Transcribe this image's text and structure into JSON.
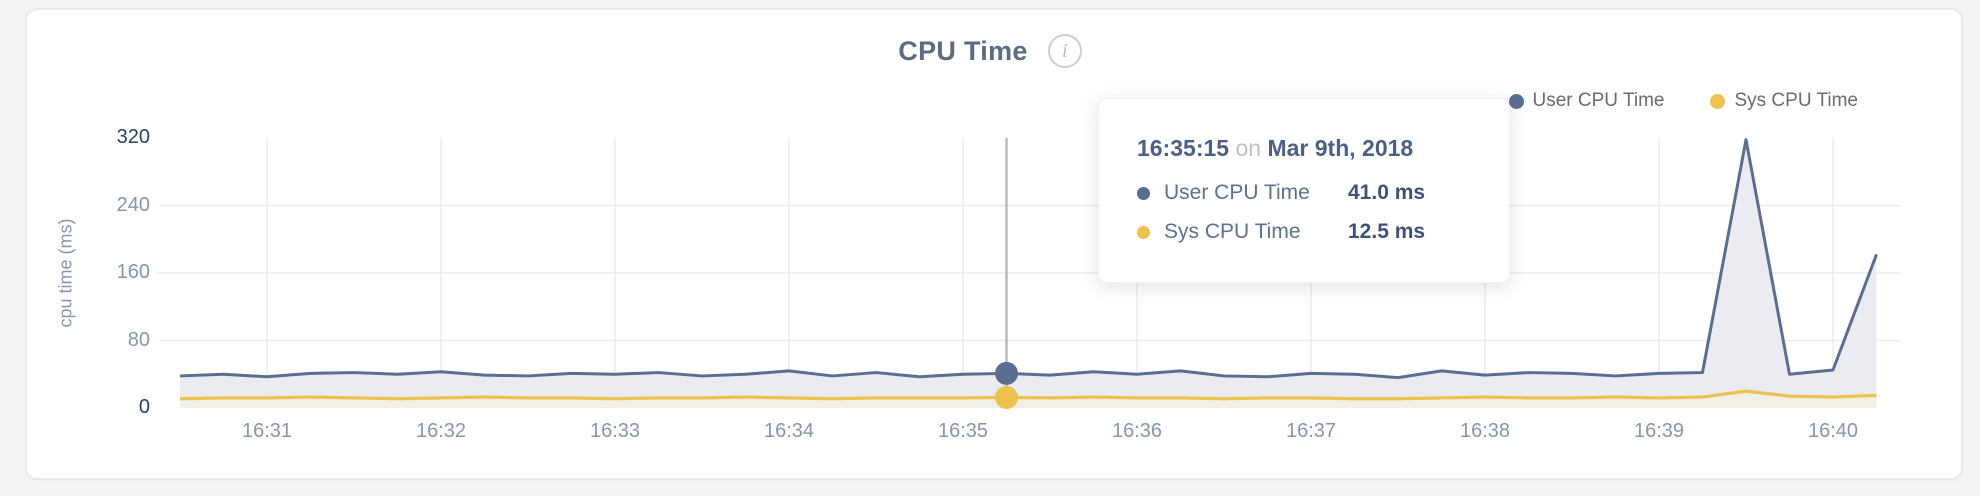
{
  "card": {
    "title": "CPU Time",
    "info_icon": "i"
  },
  "colors": {
    "user": "#5c6e90",
    "sys": "#eec24e",
    "user_fill": "#eaecf1",
    "sys_fill": "#f2efe5",
    "grid": "#ececec",
    "crosshair": "#bcbcbc",
    "title": "#5b6b84",
    "tick": "#8796ac",
    "tick_strong": "#2e3f5e",
    "tooltip_heading": "#4c5f84",
    "tooltip_label": "#5e7090",
    "tooltip_value": "#3e5278"
  },
  "legend": {
    "items": [
      {
        "label": "User CPU Time"
      },
      {
        "label": "Sys CPU Time"
      }
    ]
  },
  "tooltip": {
    "time": "16:35:15",
    "on": "on",
    "date": "Mar 9th, 2018",
    "rows": [
      {
        "label": "User CPU Time",
        "value": "41.0 ms"
      },
      {
        "label": "Sys CPU Time",
        "value": "12.5 ms"
      }
    ]
  },
  "chart_data": {
    "type": "area",
    "title": "CPU Time",
    "ylabel": "cpu time (ms)",
    "ylim": [
      0,
      320
    ],
    "y_ticks": [
      320,
      240,
      160,
      80,
      0
    ],
    "x_ticks": [
      "16:31",
      "16:32",
      "16:33",
      "16:34",
      "16:35",
      "16:36",
      "16:37",
      "16:38",
      "16:39",
      "16:40"
    ],
    "grid": "on",
    "legend_position": "top-right",
    "x_times": [
      "16:30:30",
      "16:30:45",
      "16:31:00",
      "16:31:15",
      "16:31:30",
      "16:31:45",
      "16:32:00",
      "16:32:15",
      "16:32:30",
      "16:32:45",
      "16:33:00",
      "16:33:15",
      "16:33:30",
      "16:33:45",
      "16:34:00",
      "16:34:15",
      "16:34:30",
      "16:34:45",
      "16:35:00",
      "16:35:15",
      "16:35:30",
      "16:35:45",
      "16:36:00",
      "16:36:15",
      "16:36:30",
      "16:36:45",
      "16:37:00",
      "16:37:15",
      "16:37:30",
      "16:37:45",
      "16:38:00",
      "16:38:15",
      "16:38:30",
      "16:38:45",
      "16:39:00",
      "16:39:15",
      "16:39:30",
      "16:39:45",
      "16:40:00",
      "16:40:15"
    ],
    "series": [
      {
        "name": "User CPU Time",
        "values": [
          38,
          40,
          37,
          41,
          42,
          40,
          43,
          39,
          38,
          41,
          40,
          42,
          38,
          40,
          44,
          38,
          42,
          37,
          40,
          41,
          39,
          43,
          40,
          44,
          38,
          37,
          41,
          40,
          36,
          44,
          39,
          42,
          41,
          38,
          41,
          42,
          318,
          40,
          45,
          182
        ]
      },
      {
        "name": "Sys CPU Time",
        "values": [
          11,
          12,
          12,
          13,
          12,
          11,
          12,
          13,
          12,
          12,
          11,
          12,
          12,
          13,
          12,
          11,
          12,
          12,
          12,
          12.5,
          12,
          13,
          12,
          12,
          11,
          12,
          12,
          11,
          11,
          12,
          13,
          12,
          12,
          13,
          12,
          13,
          20,
          14,
          13,
          15
        ]
      }
    ],
    "hover": {
      "time": "16:35:15",
      "user_value": 41.0,
      "sys_value": 12.5
    }
  }
}
